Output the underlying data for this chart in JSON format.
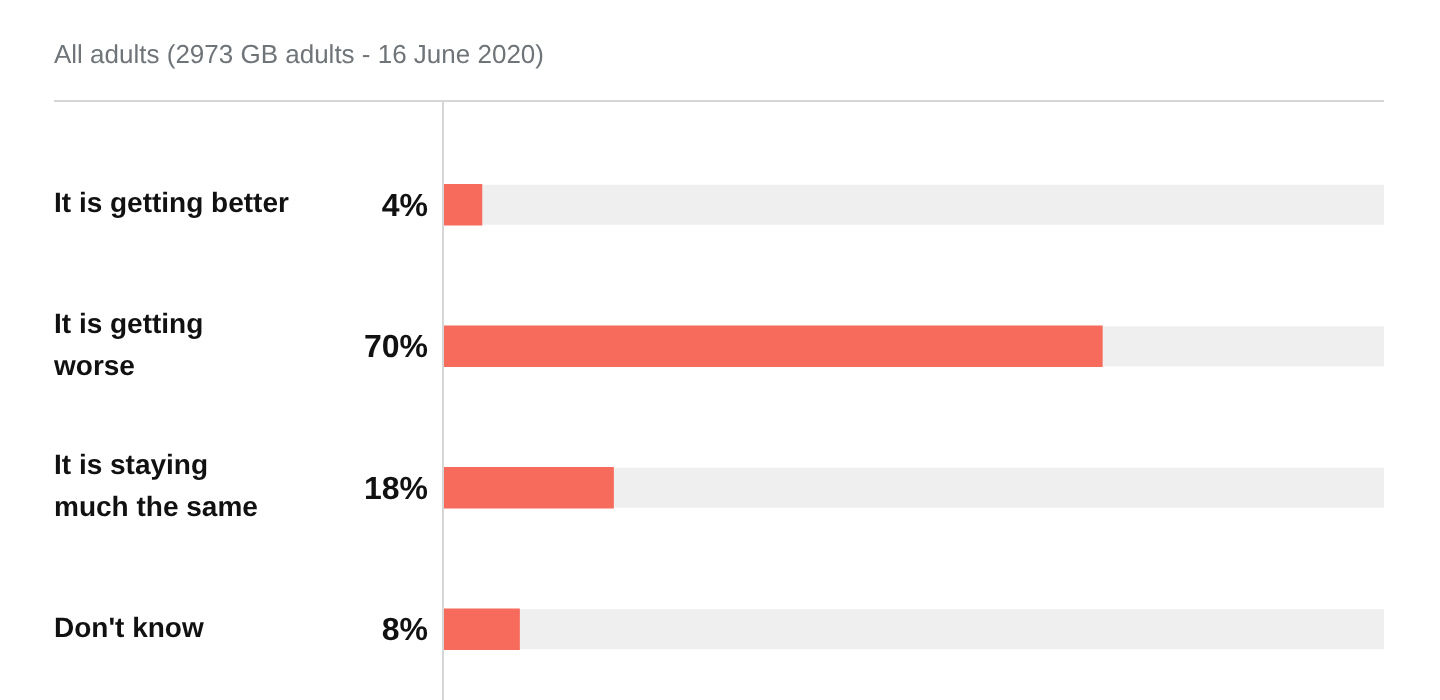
{
  "chart_data": {
    "type": "bar",
    "orientation": "horizontal",
    "subtitle": "All adults (2973 GB adults - 16 June 2020)",
    "categories": [
      "It is getting better",
      "It is getting worse",
      "It is staying much the same",
      "Don't know"
    ],
    "values": [
      4,
      70,
      18,
      8
    ],
    "color": "#f76b5c",
    "value_labels": [
      "4%",
      "70%",
      "18%",
      "8%"
    ],
    "xlim": [
      0,
      100
    ],
    "tick_labels": "y"
  }
}
